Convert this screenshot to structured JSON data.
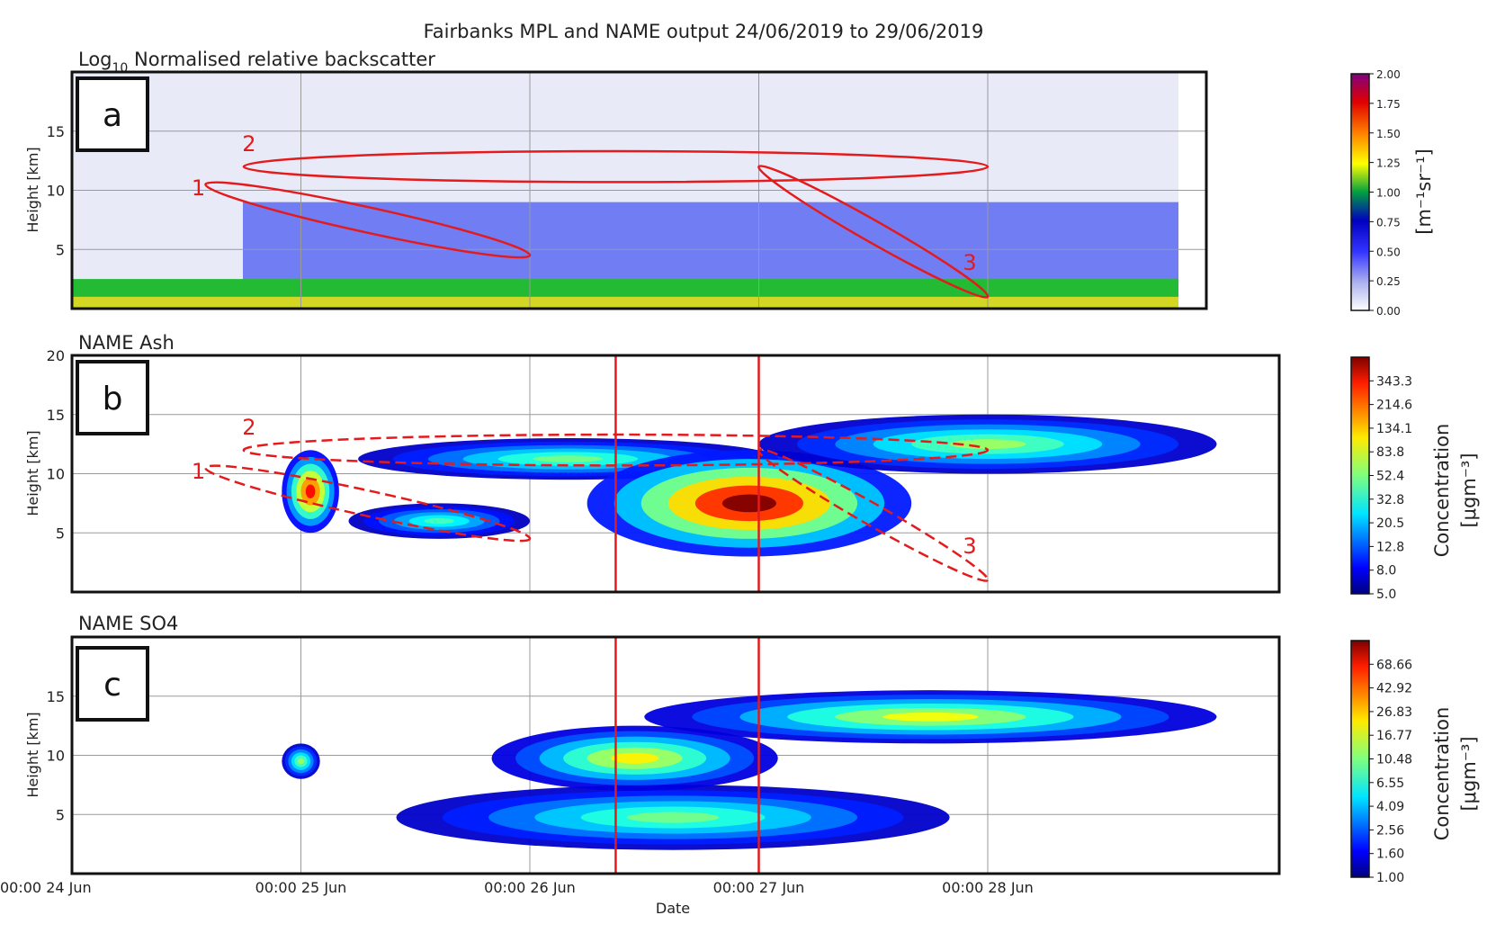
{
  "suptitle": "Fairbanks MPL and NAME output 24/06/2019 to 29/06/2019",
  "xlabel": "Date",
  "xticks": [
    "00:00 24 Jun",
    "00:00 25 Jun",
    "00:00 26 Jun",
    "00:00 27 Jun",
    "00:00 28 Jun"
  ],
  "colors": {
    "ellipse": "#e41a1c",
    "vline": "#e41a1c",
    "frame": "#111111"
  },
  "chart_data": [
    {
      "type": "heatmap",
      "panel_label": "a",
      "title_main": "Log",
      "title_sub": "10",
      "title_rest": " Normalised relative backscatter",
      "ylabel": "Height [km]",
      "yticks": [
        "5",
        "10",
        "15"
      ],
      "ylim": [
        0,
        20
      ],
      "x_range": [
        "2019-06-24 00:00",
        "2019-06-28 20:00"
      ],
      "colorbar": {
        "label": "[m⁻¹sr⁻¹]",
        "ticks": [
          "0.00",
          "0.25",
          "0.50",
          "0.75",
          "1.00",
          "1.25",
          "1.50",
          "1.75",
          "2.00"
        ],
        "range": [
          0,
          2
        ]
      },
      "annotations": [
        {
          "label": "1",
          "x": [
            "2019-06-24 14:00",
            "2019-06-26 00:00"
          ],
          "y": [
            4.5,
            10.5
          ],
          "shape": "ellipse",
          "style": "solid"
        },
        {
          "label": "2",
          "x": [
            "2019-06-24 18:00",
            "2019-06-28 00:00"
          ],
          "y": [
            11,
            13
          ],
          "shape": "ellipse",
          "style": "solid"
        },
        {
          "label": "3",
          "x": [
            "2019-06-27 00:00",
            "2019-06-28 00:00"
          ],
          "y": [
            1,
            12
          ],
          "shape": "ellipse",
          "style": "solid"
        }
      ]
    },
    {
      "type": "heatmap",
      "panel_label": "b",
      "title": "NAME Ash",
      "ylabel": "Height [km]",
      "yticks": [
        "5",
        "10",
        "15",
        "20"
      ],
      "ylim": [
        0,
        20
      ],
      "colorbar": {
        "label": "Concentration",
        "label2": "[μgm⁻³]",
        "ticks": [
          "5.0",
          "8.0",
          "12.8",
          "20.5",
          "32.8",
          "52.4",
          "83.8",
          "134.1",
          "214.6",
          "343.3"
        ],
        "range": [
          5,
          549.8
        ]
      },
      "vlines": [
        "2019-06-26 09:00",
        "2019-06-27 00:00"
      ],
      "annotations": [
        {
          "label": "1",
          "x": [
            "2019-06-24 14:00",
            "2019-06-26 00:00"
          ],
          "y": [
            4.5,
            10.5
          ],
          "shape": "ellipse",
          "style": "dashed"
        },
        {
          "label": "2",
          "x": [
            "2019-06-24 18:00",
            "2019-06-28 00:00"
          ],
          "y": [
            11,
            13
          ],
          "shape": "ellipse",
          "style": "dashed"
        },
        {
          "label": "3",
          "x": [
            "2019-06-27 00:00",
            "2019-06-28 00:00"
          ],
          "y": [
            1,
            12
          ],
          "shape": "ellipse",
          "style": "dashed"
        }
      ],
      "plumes": [
        {
          "x": [
            "2019-06-24 22:00",
            "2019-06-25 04:00"
          ],
          "y": [
            5,
            12
          ],
          "peak": 300
        },
        {
          "x": [
            "2019-06-25 05:00",
            "2019-06-26 00:00"
          ],
          "y": [
            4.5,
            7.5
          ],
          "peak": 40
        },
        {
          "x": [
            "2019-06-25 06:00",
            "2019-06-27 02:00"
          ],
          "y": [
            9.5,
            13
          ],
          "peak": 50
        },
        {
          "x": [
            "2019-06-26 06:00",
            "2019-06-27 16:00"
          ],
          "y": [
            3,
            12
          ],
          "peak": 549
        },
        {
          "x": [
            "2019-06-27 00:00",
            "2019-06-29 00:00"
          ],
          "y": [
            10,
            15
          ],
          "peak": 60
        }
      ]
    },
    {
      "type": "heatmap",
      "panel_label": "c",
      "title": "NAME SO4",
      "ylabel": "Height [km]",
      "yticks": [
        "5",
        "10",
        "15"
      ],
      "ylim": [
        0,
        20
      ],
      "colorbar": {
        "label": "Concentration",
        "label2": "[μgm⁻³]",
        "ticks": [
          "1.00",
          "1.60",
          "2.56",
          "4.09",
          "6.55",
          "10.48",
          "16.77",
          "26.83",
          "42.92",
          "68.66"
        ],
        "range": [
          1,
          110
        ]
      },
      "vlines": [
        "2019-06-26 09:00",
        "2019-06-27 00:00"
      ],
      "plumes": [
        {
          "x": [
            "2019-06-24 22:00",
            "2019-06-25 02:00"
          ],
          "y": [
            8,
            11
          ],
          "peak": 12
        },
        {
          "x": [
            "2019-06-25 10:00",
            "2019-06-27 20:00"
          ],
          "y": [
            2,
            7.5
          ],
          "peak": 10
        },
        {
          "x": [
            "2019-06-25 20:00",
            "2019-06-27 02:00"
          ],
          "y": [
            7,
            12.5
          ],
          "peak": 20
        },
        {
          "x": [
            "2019-06-26 12:00",
            "2019-06-29 00:00"
          ],
          "y": [
            11,
            15.5
          ],
          "peak": 18
        }
      ]
    }
  ]
}
